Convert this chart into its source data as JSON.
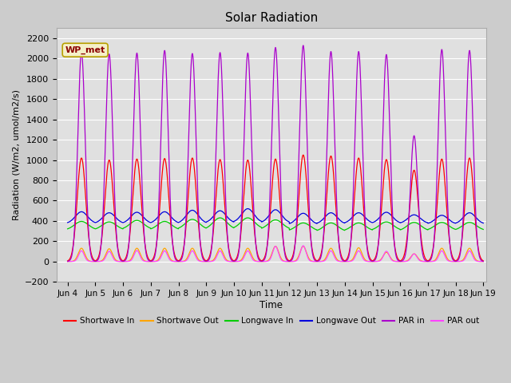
{
  "title": "Solar Radiation",
  "ylabel": "Radiation (W/m2, umol/m2/s)",
  "xlabel": "Time",
  "xlim_days": [
    3.6,
    19.1
  ],
  "ylim": [
    -200,
    2300
  ],
  "yticks": [
    -200,
    0,
    200,
    400,
    600,
    800,
    1000,
    1200,
    1400,
    1600,
    1800,
    2000,
    2200
  ],
  "xtick_labels": [
    "Jun 4",
    "Jun 5",
    "Jun 6",
    "Jun 7",
    "Jun 8",
    "Jun 9",
    "Jun 10",
    "Jun 11",
    "Jun 12",
    "Jun 13",
    "Jun 14",
    "Jun 15",
    "Jun 16",
    "Jun 17",
    "Jun 18",
    "Jun 19"
  ],
  "xtick_positions": [
    4,
    5,
    6,
    7,
    8,
    9,
    10,
    11,
    12,
    13,
    14,
    15,
    16,
    17,
    18,
    19
  ],
  "annotation_text": "WP_met",
  "background_color": "#cccccc",
  "plot_bg_color": "#e0e0e0",
  "grid_color": "#ffffff",
  "series": {
    "shortwave_in": {
      "color": "#ff0000",
      "label": "Shortwave In"
    },
    "shortwave_out": {
      "color": "#ffa500",
      "label": "Shortwave Out"
    },
    "longwave_in": {
      "color": "#00cc00",
      "label": "Longwave In"
    },
    "longwave_out": {
      "color": "#0000dd",
      "label": "Longwave Out"
    },
    "par_in": {
      "color": "#aa00cc",
      "label": "PAR in"
    },
    "par_out": {
      "color": "#ff44ff",
      "label": "PAR out"
    }
  },
  "n_days": 15,
  "start_day": 4,
  "sw_in_peaks": [
    1020,
    1000,
    1010,
    1015,
    1020,
    1005,
    1000,
    1010,
    1050,
    1040,
    1020,
    1005,
    900,
    1010,
    1020
  ],
  "sw_out_peaks": [
    130,
    125,
    130,
    130,
    130,
    130,
    130,
    150,
    150,
    130,
    135,
    90,
    75,
    130,
    130
  ],
  "lw_in_base": [
    310,
    310,
    315,
    310,
    315,
    315,
    320,
    315,
    300,
    295,
    300,
    305,
    300,
    305,
    305
  ],
  "lw_in_add": [
    85,
    80,
    90,
    85,
    100,
    115,
    110,
    95,
    80,
    85,
    80,
    85,
    85,
    80,
    80
  ],
  "lw_out_base": [
    375,
    375,
    375,
    375,
    375,
    380,
    385,
    380,
    365,
    370,
    375,
    375,
    375,
    370,
    370
  ],
  "lw_out_add": [
    115,
    105,
    110,
    115,
    130,
    120,
    135,
    130,
    110,
    110,
    105,
    110,
    85,
    85,
    110
  ],
  "par_in_peaks": [
    2065,
    2045,
    2055,
    2080,
    2050,
    2060,
    2055,
    2110,
    2130,
    2070,
    2070,
    2040,
    1240,
    2090,
    2080
  ],
  "par_out_peaks": [
    105,
    100,
    108,
    105,
    105,
    105,
    105,
    150,
    155,
    105,
    105,
    100,
    75,
    105,
    105
  ]
}
